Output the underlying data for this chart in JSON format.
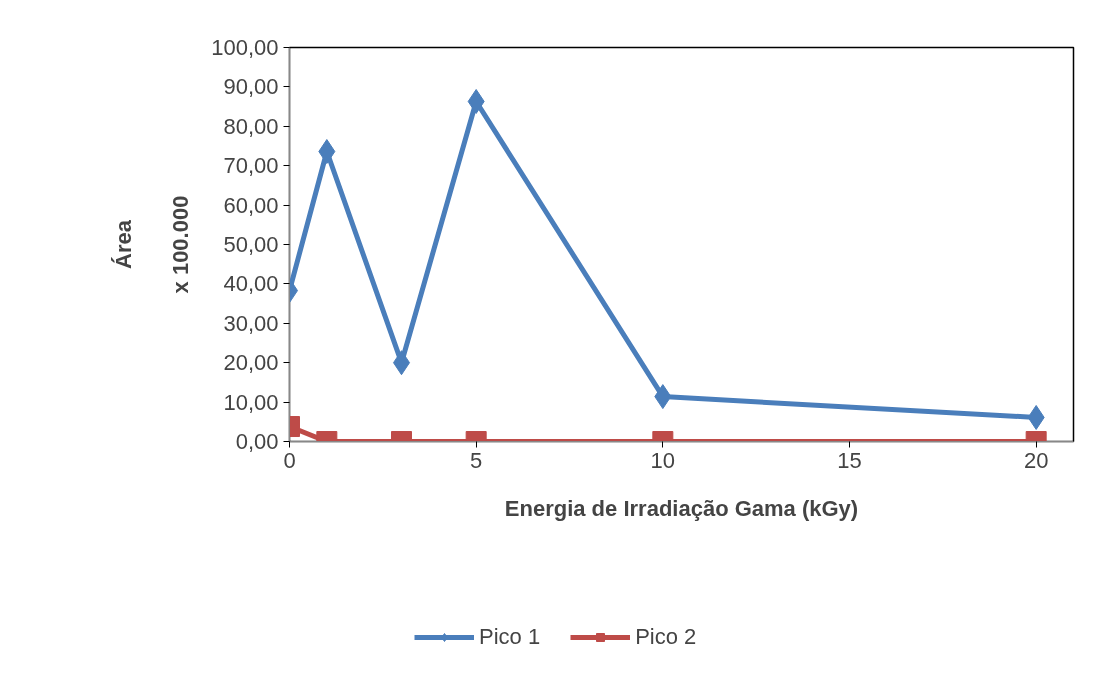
{
  "chart_data": {
    "type": "line",
    "xlabel": "Energia de Irradiação Gama (kGy)",
    "ylabel": "Área",
    "annotations": [
      "x 100.000"
    ],
    "x": [
      0,
      1,
      3,
      5,
      10,
      20
    ],
    "series": [
      {
        "name": "Pico 1",
        "color": "#4a7ebb",
        "marker": "diamond",
        "values": [
          38.3,
          73.6,
          20.0,
          86.3,
          11.4,
          6.1
        ]
      },
      {
        "name": "Pico 2",
        "color": "#be4b48",
        "marker": "square",
        "values": [
          3.8,
          0,
          0,
          0,
          0,
          0
        ]
      }
    ],
    "xlim": [
      0,
      21
    ],
    "xticks": [
      0,
      5,
      10,
      15,
      20
    ],
    "ylim": [
      0,
      100
    ],
    "yticks": [
      {
        "value": 0,
        "label": "0,00"
      },
      {
        "value": 10,
        "label": "10,00"
      },
      {
        "value": 20,
        "label": "20,00"
      },
      {
        "value": 30,
        "label": "30,00"
      },
      {
        "value": 40,
        "label": "40,00"
      },
      {
        "value": 50,
        "label": "50,00"
      },
      {
        "value": 60,
        "label": "60,00"
      },
      {
        "value": 70,
        "label": "70,00"
      },
      {
        "value": 80,
        "label": "80,00"
      },
      {
        "value": 90,
        "label": "90,00"
      },
      {
        "value": 100,
        "label": "100,00"
      }
    ],
    "grid": false,
    "legend": "bottom",
    "line_style": "solid"
  }
}
